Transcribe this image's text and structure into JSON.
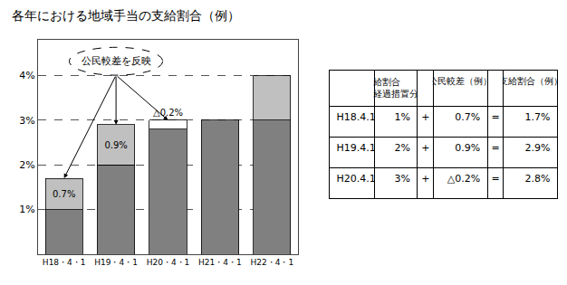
{
  "chart_data": {
    "type": "bar",
    "title": "各年における地域手当の支給割合（例）",
    "categories": [
      "H18・4・1",
      "H19・4・1",
      "H20・4・1",
      "H21・4・1",
      "H22・4・1"
    ],
    "stacked": true,
    "series": [
      {
        "color": "#808080",
        "values": [
          1.0,
          2.0,
          2.8,
          3.0,
          3.0
        ]
      },
      {
        "color": "#c0c0c0",
        "values": [
          0.7,
          0.9,
          null,
          null,
          1.0
        ],
        "value_labels": [
          "0.7%",
          "0.9%",
          null,
          null,
          null
        ]
      },
      {
        "color": "#ffffff",
        "values": [
          null,
          null,
          0.2,
          null,
          null
        ],
        "value_labels": [
          null,
          null,
          "△0.2%",
          null,
          null
        ]
      }
    ],
    "data_labels": true,
    "ylim": [
      0,
      4.8
    ],
    "yticks": [
      {
        "value": 1,
        "label": "1%"
      },
      {
        "value": 2,
        "label": "2%"
      },
      {
        "value": 3,
        "label": "3%"
      },
      {
        "value": 4,
        "label": "4%"
      }
    ],
    "grid": true,
    "annotations": [
      {
        "text": "公民較差を反映",
        "points_to": [
          "H18・4・1",
          "H19・4・1",
          "H20・4・1"
        ]
      }
    ],
    "table": {
      "header": [
        null,
        "支給割合\n（経過措置分）",
        null,
        "公民較差（例）",
        null,
        "支給割合（例）"
      ],
      "rows": [
        [
          "H18.4.1",
          "1%",
          "+",
          "0.7%",
          "=",
          "1.7%"
        ],
        [
          "H19.4.1",
          "2%",
          "+",
          "0.9%",
          "=",
          "2.9%"
        ],
        [
          "H20.4.1",
          "3%",
          "+",
          "△0.2%",
          "=",
          "2.8%"
        ]
      ]
    }
  }
}
